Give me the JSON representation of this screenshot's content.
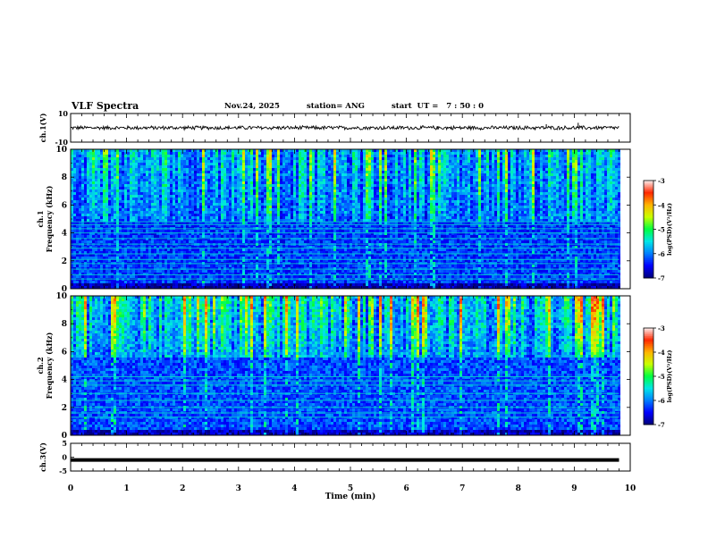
{
  "header": {
    "title": "VLF Spectra",
    "date": "Nov.24, 2025",
    "station": "station= ANG",
    "start": "start  UT =   7 : 50 : 0"
  },
  "colors": {
    "waveform": "#000000",
    "axis": "#000000",
    "background": "#ffffff",
    "colormap": [
      "#00007a",
      "#0000ff",
      "#0080ff",
      "#00e6e6",
      "#00ff40",
      "#c8ff00",
      "#ffb400",
      "#ff2800",
      "#fff0f0"
    ]
  },
  "chart_data": [
    {
      "id": "ch1-waveform",
      "type": "line",
      "ylabel": "ch.1(V)",
      "ylim": [
        -10,
        10
      ],
      "yticks": [
        10,
        -10
      ],
      "mean": 0,
      "noise_amplitude": 1.5,
      "spikes": [
        {
          "x": 8.5,
          "y": 2.5
        },
        {
          "x": 9.07,
          "y": 3.5
        }
      ],
      "xlim": [
        0,
        9.8
      ]
    },
    {
      "id": "ch1-spectrogram",
      "type": "heatmap",
      "ylabel": "Frequency (kHz)",
      "channel": "ch.1",
      "ylim": [
        0,
        10
      ],
      "yticks": [
        0,
        2,
        4,
        6,
        8,
        10
      ],
      "xlim": [
        0,
        9.8
      ],
      "colorbar": {
        "label": "log(PSD)(V²/Hz)",
        "range": [
          -7,
          -3
        ],
        "ticks": [
          "-3",
          "-4",
          "-5",
          "-6",
          "-7"
        ]
      },
      "noise_floor_log_psd": -6.3,
      "sferic_band_khz": [
        4.8,
        10
      ],
      "sferic_level_log_psd": -4.5,
      "horizontal_lines_khz": [
        0.7,
        1.0,
        1.4,
        1.8,
        2.1,
        2.5,
        2.9,
        3.2,
        3.6,
        4.0,
        4.3,
        4.6,
        4.8
      ]
    },
    {
      "id": "ch2-spectrogram",
      "type": "heatmap",
      "ylabel": "Frequency (kHz)",
      "channel": "ch.2",
      "ylim": [
        0,
        10
      ],
      "yticks": [
        0,
        2,
        4,
        6,
        8,
        10
      ],
      "xlim": [
        0,
        9.8
      ],
      "colorbar": {
        "label": "log(PSD)(V²/Hz)",
        "range": [
          -7,
          -3
        ],
        "ticks": [
          "-3",
          "-4",
          "-5",
          "-6",
          "-7"
        ]
      },
      "noise_floor_log_psd": -6.2,
      "sferic_band_khz": [
        5.5,
        10
      ],
      "sferic_level_log_psd": -3.9,
      "horizontal_lines_khz": [
        1.3,
        1.6,
        2.0,
        2.5,
        3.0,
        3.6,
        3.9,
        4.2
      ]
    },
    {
      "id": "ch3-waveform",
      "type": "line",
      "ylabel": "ch.3(V)",
      "ylim": [
        -5,
        5
      ],
      "yticks": [
        5,
        0,
        -5
      ],
      "yticks_text": [
        "5",
        "0",
        "-5"
      ],
      "constant_value": -1,
      "xlim": [
        0,
        9.8
      ]
    }
  ],
  "x_axis": {
    "label": "Time  (min)",
    "range": [
      0,
      10
    ],
    "ticks": [
      "0",
      "1",
      "2",
      "3",
      "4",
      "5",
      "6",
      "7",
      "8",
      "9",
      "10"
    ]
  }
}
